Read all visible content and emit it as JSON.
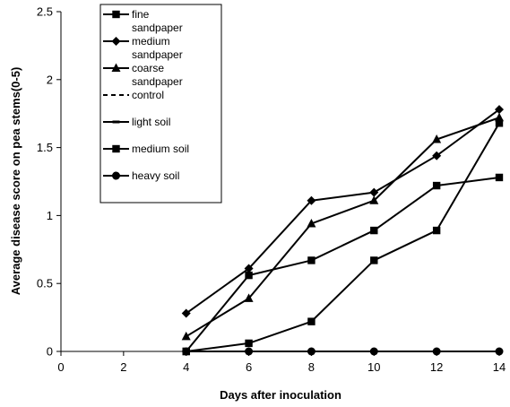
{
  "chart_data": {
    "type": "line",
    "title": "",
    "xlabel": "Days after inoculation",
    "ylabel": "Average disease score on pea stems(0-5)",
    "xlim": [
      0,
      14
    ],
    "ylim": [
      0,
      2.5
    ],
    "x_ticks": [
      "0",
      "2",
      "4",
      "6",
      "8",
      "10",
      "12",
      "14"
    ],
    "y_ticks": [
      "0",
      "0.5",
      "1",
      "1.5",
      "2",
      "2.5"
    ],
    "grid": false,
    "legend_position": "top-left",
    "x": [
      4,
      6,
      8,
      10,
      12,
      14
    ],
    "series": [
      {
        "name": "fine sandpaper",
        "legend_lines": [
          "fine",
          "sandpaper"
        ],
        "marker": "square",
        "dash": "solid",
        "values": [
          0,
          0.06,
          0.22,
          0.67,
          0.89,
          1.68
        ]
      },
      {
        "name": "medium sandpaper",
        "legend_lines": [
          "medium",
          "sandpaper"
        ],
        "marker": "diamond",
        "dash": "solid",
        "values": [
          0.28,
          0.61,
          1.11,
          1.17,
          1.44,
          1.78
        ]
      },
      {
        "name": "coarse sandpaper",
        "legend_lines": [
          "coarse",
          "sandpaper"
        ],
        "marker": "triangle",
        "dash": "solid",
        "values": [
          0.11,
          0.39,
          0.94,
          1.11,
          1.56,
          1.72
        ]
      },
      {
        "name": "control",
        "legend_lines": [
          "control"
        ],
        "marker": "none",
        "dash": "dashed",
        "values": [
          0,
          0,
          0,
          0,
          0,
          0
        ]
      },
      {
        "name": "light soil",
        "legend_lines": [
          "light soil"
        ],
        "marker": "dash",
        "dash": "solid",
        "values": [
          0,
          0,
          0,
          0,
          0,
          0
        ]
      },
      {
        "name": "medium soil",
        "legend_lines": [
          "medium soil"
        ],
        "marker": "square",
        "dash": "solid",
        "values": [
          0,
          0.56,
          0.67,
          0.89,
          1.22,
          1.28
        ]
      },
      {
        "name": "heavy soil",
        "legend_lines": [
          "heavy soil"
        ],
        "marker": "circle",
        "dash": "solid",
        "values": [
          0,
          0,
          0,
          0,
          0,
          0
        ]
      }
    ],
    "colors": {
      "line": "#000000",
      "background": "#ffffff"
    }
  }
}
